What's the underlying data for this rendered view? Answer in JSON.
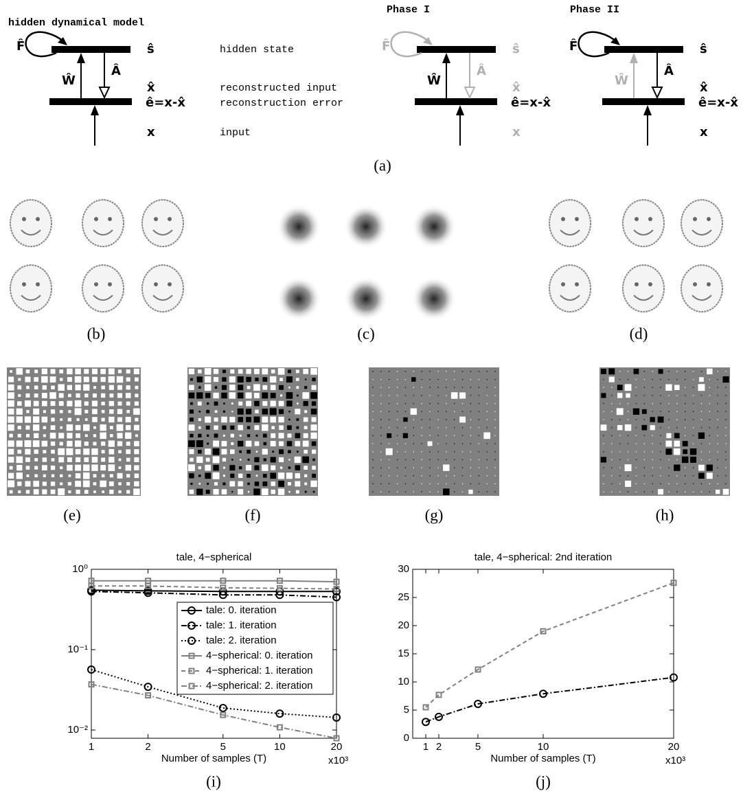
{
  "figure": {
    "diagram": {
      "title": "hidden dynamical model",
      "phases": [
        "Phase I",
        "Phase II"
      ],
      "symbols": {
        "F": "F̂",
        "s": "ŝ",
        "W": "Ŵ",
        "A": "Â",
        "xhat": "x̂",
        "e": "ê=x-x̂",
        "x": "x"
      },
      "descriptions": [
        "hidden state",
        "reconstructed input",
        "reconstruction error",
        "input"
      ]
    },
    "captions": [
      "(a)",
      "(b)",
      "(c)",
      "(d)",
      "(e)",
      "(f)",
      "(g)",
      "(h)",
      "(i)",
      "(j)"
    ]
  },
  "chart_data": [
    {
      "type": "line",
      "title": "tale, 4−spherical",
      "x_label": "Number of samples (T)",
      "x_multiplier": "x10³",
      "x": [
        1,
        2,
        5,
        10,
        20
      ],
      "xscale": "log",
      "yscale": "log",
      "xlim": [
        1,
        20
      ],
      "xticks": [
        1,
        2,
        5,
        10,
        20
      ],
      "ylim": [
        0.0079,
        1
      ],
      "yticks": [
        {
          "value": 1,
          "label": "10⁰"
        },
        {
          "value": 0.1,
          "label": "10⁻¹"
        },
        {
          "value": 0.01,
          "label": "10⁻²"
        }
      ],
      "legend": "center right",
      "series": [
        {
          "name": "tale: 0. iteration",
          "color": "#000000",
          "style": "solid",
          "marker": "circle",
          "values": [
            0.55,
            0.54,
            0.53,
            0.53,
            0.53
          ]
        },
        {
          "name": "tale: 1. iteration",
          "color": "#000000",
          "style": "dashdot",
          "marker": "circle",
          "values": [
            0.53,
            0.51,
            0.48,
            0.48,
            0.45
          ]
        },
        {
          "name": "tale: 2. iteration",
          "color": "#000000",
          "style": "dotted",
          "marker": "circle",
          "values": [
            0.0565,
            0.0345,
            0.0188,
            0.016,
            0.0143
          ]
        },
        {
          "name": "4−spherical: 0. iteration",
          "color": "#808080",
          "style": "solid",
          "marker": "square",
          "values": [
            0.72,
            0.72,
            0.72,
            0.72,
            0.7
          ]
        },
        {
          "name": "4−spherical: 1. iteration",
          "color": "#808080",
          "style": "dashed",
          "marker": "square",
          "values": [
            0.62,
            0.62,
            0.59,
            0.58,
            0.57
          ]
        },
        {
          "name": "4−spherical: 2. iteration",
          "color": "#808080",
          "style": "dashdot",
          "marker": "square",
          "values": [
            0.037,
            0.027,
            0.0154,
            0.0108,
            0.0079
          ]
        }
      ]
    },
    {
      "type": "line",
      "title": "tale, 4−spherical: 2nd iteration",
      "x_label": "Number of samples (T)",
      "x_multiplier": "x10³",
      "x": [
        1,
        2,
        5,
        10,
        20
      ],
      "xscale": "linear",
      "yscale": "linear",
      "xlim": [
        0,
        20
      ],
      "xticks": [
        1,
        2,
        5,
        10,
        20
      ],
      "ylim": [
        0,
        30
      ],
      "yticks": [
        0,
        5,
        10,
        15,
        20,
        25,
        30
      ],
      "series": [
        {
          "color": "#808080",
          "style": "dashed",
          "marker": "square",
          "values": [
            5.5,
            7.7,
            12.2,
            19.0,
            27.6
          ]
        },
        {
          "color": "#000000",
          "style": "dashdot",
          "marker": "circle",
          "values": [
            2.9,
            3.8,
            6.1,
            7.9,
            10.8
          ]
        }
      ]
    }
  ]
}
